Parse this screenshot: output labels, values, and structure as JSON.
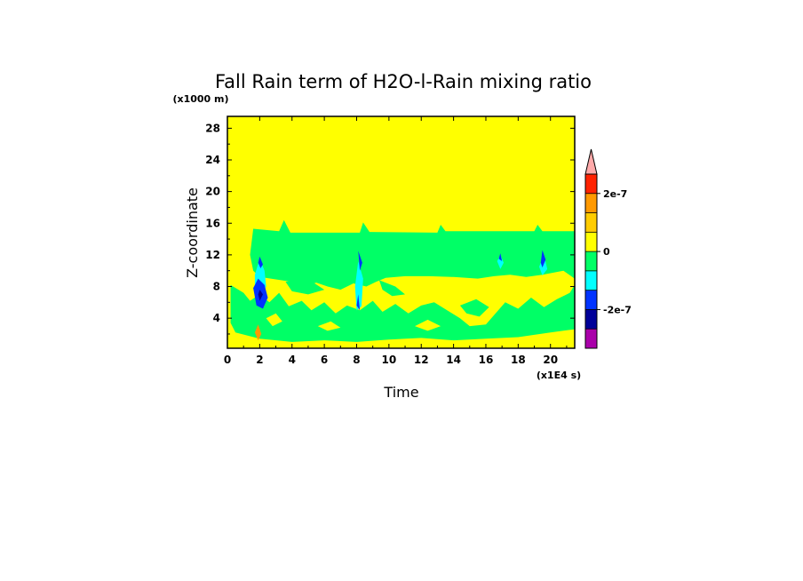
{
  "chart_data": {
    "type": "heatmap",
    "title": "Fall Rain term of H2O-l-Rain mixing ratio",
    "xlabel": "Time",
    "ylabel": "Z-coordinate",
    "x_unit": "(x1E4 s)",
    "y_unit": "(x1000 m)",
    "xlim": [
      0,
      21.5
    ],
    "ylim": [
      0.2,
      29.5
    ],
    "x_ticks": [
      0,
      2,
      4,
      6,
      8,
      10,
      12,
      14,
      16,
      18,
      20
    ],
    "y_ticks": [
      4,
      8,
      12,
      16,
      20,
      24,
      28
    ],
    "background_level_color": "#ffff00",
    "regions": [
      {
        "color": "#00ff66",
        "level": "between -5e-8 and 0",
        "outline": [
          [
            1.6,
            15.3
          ],
          [
            3.2,
            15.0
          ],
          [
            3.5,
            16.4
          ],
          [
            3.9,
            14.8
          ],
          [
            8.2,
            14.8
          ],
          [
            8.4,
            16.1
          ],
          [
            8.8,
            14.9
          ],
          [
            13.0,
            14.8
          ],
          [
            13.2,
            15.8
          ],
          [
            13.5,
            15.0
          ],
          [
            19.0,
            15.0
          ],
          [
            19.2,
            15.8
          ],
          [
            19.5,
            15.0
          ],
          [
            21.5,
            15.0
          ],
          [
            21.5,
            9.0
          ],
          [
            20.8,
            10.0
          ],
          [
            19.5,
            9.5
          ],
          [
            18.5,
            9.2
          ],
          [
            17.5,
            9.5
          ],
          [
            16.5,
            9.3
          ],
          [
            15.5,
            9.0
          ],
          [
            14.0,
            9.2
          ],
          [
            12.5,
            9.3
          ],
          [
            11.0,
            9.3
          ],
          [
            9.8,
            9.1
          ],
          [
            9.2,
            8.6
          ],
          [
            8.6,
            8.0
          ],
          [
            7.8,
            8.4
          ],
          [
            7.0,
            7.6
          ],
          [
            6.2,
            8.0
          ],
          [
            5.5,
            8.5
          ],
          [
            4.8,
            8.0
          ],
          [
            4.0,
            8.6
          ],
          [
            3.0,
            8.9
          ],
          [
            2.0,
            9.2
          ],
          [
            1.6,
            10.0
          ],
          [
            1.4,
            12.0
          ]
        ]
      },
      {
        "color": "#00ff66",
        "level": "between -5e-8 and 0",
        "outline": [
          [
            0.2,
            8.2
          ],
          [
            1.0,
            7.2
          ],
          [
            1.4,
            6.2
          ],
          [
            2.0,
            7.0
          ],
          [
            2.6,
            6.0
          ],
          [
            3.2,
            7.2
          ],
          [
            3.8,
            5.5
          ],
          [
            4.6,
            6.2
          ],
          [
            5.2,
            5.0
          ],
          [
            6.0,
            6.0
          ],
          [
            6.7,
            4.6
          ],
          [
            7.4,
            5.6
          ],
          [
            8.2,
            5.0
          ],
          [
            9.0,
            6.2
          ],
          [
            9.6,
            4.8
          ],
          [
            10.4,
            5.8
          ],
          [
            11.2,
            4.6
          ],
          [
            12.0,
            5.6
          ],
          [
            12.8,
            6.0
          ],
          [
            13.6,
            5.0
          ],
          [
            14.4,
            4.0
          ],
          [
            15.0,
            3.0
          ],
          [
            16.0,
            3.2
          ],
          [
            16.6,
            4.6
          ],
          [
            17.2,
            6.0
          ],
          [
            18.0,
            5.2
          ],
          [
            18.8,
            6.6
          ],
          [
            19.6,
            5.4
          ],
          [
            20.4,
            6.4
          ],
          [
            21.2,
            7.2
          ],
          [
            21.5,
            8.2
          ],
          [
            21.5,
            2.6
          ],
          [
            20.0,
            2.2
          ],
          [
            18.0,
            1.6
          ],
          [
            16.0,
            1.4
          ],
          [
            14.0,
            1.2
          ],
          [
            12.0,
            1.5
          ],
          [
            10.0,
            1.3
          ],
          [
            8.0,
            1.0
          ],
          [
            6.0,
            1.2
          ],
          [
            4.0,
            1.0
          ],
          [
            2.0,
            1.4
          ],
          [
            0.5,
            2.2
          ],
          [
            0.2,
            3.4
          ]
        ]
      },
      {
        "color": "#00ff66",
        "level": "between -5e-8 and 0",
        "outline": [
          [
            3.6,
            8.6
          ],
          [
            4.6,
            9.0
          ],
          [
            5.4,
            8.4
          ],
          [
            6.0,
            7.6
          ],
          [
            5.0,
            7.0
          ],
          [
            4.0,
            7.4
          ]
        ]
      },
      {
        "color": "#00ff66",
        "level": "between -5e-8 and 0",
        "outline": [
          [
            9.4,
            8.8
          ],
          [
            10.4,
            8.0
          ],
          [
            11.0,
            7.0
          ],
          [
            10.2,
            6.8
          ],
          [
            9.6,
            7.6
          ]
        ]
      },
      {
        "color": "#00ff66",
        "level": "between -5e-8 and 0",
        "outline": [
          [
            14.4,
            5.6
          ],
          [
            15.4,
            6.4
          ],
          [
            16.2,
            5.4
          ],
          [
            15.6,
            4.2
          ],
          [
            14.8,
            4.6
          ]
        ]
      },
      {
        "color": "#ffff00",
        "level": "between 0 and 5e-8",
        "outline": [
          [
            2.4,
            4.0
          ],
          [
            3.0,
            4.6
          ],
          [
            3.4,
            3.6
          ],
          [
            2.8,
            3.0
          ]
        ]
      },
      {
        "color": "#ffff00",
        "level": "between 0 and 5e-8",
        "outline": [
          [
            5.6,
            3.0
          ],
          [
            6.4,
            3.6
          ],
          [
            7.0,
            2.8
          ],
          [
            6.2,
            2.4
          ]
        ]
      },
      {
        "color": "#ffff00",
        "level": "between 0 and 5e-8",
        "outline": [
          [
            11.6,
            3.0
          ],
          [
            12.4,
            3.8
          ],
          [
            13.2,
            3.0
          ],
          [
            12.4,
            2.4
          ]
        ]
      },
      {
        "color": "#00ffff",
        "level": "between -1e-7 and -5e-8",
        "outline": [
          [
            1.7,
            9.5
          ],
          [
            2.0,
            11.5
          ],
          [
            2.3,
            10.0
          ],
          [
            2.4,
            8.0
          ],
          [
            2.0,
            6.8
          ],
          [
            1.7,
            8.0
          ]
        ]
      },
      {
        "color": "#00ffff",
        "level": "between -1e-7 and -5e-8",
        "outline": [
          [
            7.9,
            8.0
          ],
          [
            8.1,
            11.2
          ],
          [
            8.4,
            9.0
          ],
          [
            8.3,
            5.5
          ],
          [
            8.0,
            5.0
          ]
        ]
      },
      {
        "color": "#00ffff",
        "level": "between -1e-7 and -5e-8",
        "outline": [
          [
            19.3,
            10.5
          ],
          [
            19.6,
            12.0
          ],
          [
            19.8,
            10.2
          ],
          [
            19.5,
            9.4
          ]
        ]
      },
      {
        "color": "#00ffff",
        "level": "between -1e-7 and -5e-8",
        "outline": [
          [
            16.7,
            11.2
          ],
          [
            16.9,
            12.0
          ],
          [
            17.1,
            11.0
          ],
          [
            16.9,
            10.2
          ]
        ]
      },
      {
        "color": "#0033ff",
        "level": "between -2e-7 and -1e-7",
        "outline": [
          [
            1.6,
            7.8
          ],
          [
            1.9,
            9.0
          ],
          [
            2.3,
            8.2
          ],
          [
            2.5,
            6.6
          ],
          [
            2.2,
            5.2
          ],
          [
            1.8,
            5.6
          ]
        ]
      },
      {
        "color": "#0033ff",
        "level": "between -2e-7 and -1e-7",
        "outline": [
          [
            1.9,
            11.0
          ],
          [
            2.0,
            11.8
          ],
          [
            2.2,
            10.8
          ],
          [
            2.05,
            10.3
          ]
        ]
      },
      {
        "color": "#0033ff",
        "level": "between -2e-7 and -1e-7",
        "outline": [
          [
            8.1,
            12.5
          ],
          [
            8.2,
            10.0
          ],
          [
            8.35,
            11.0
          ]
        ]
      },
      {
        "color": "#0033ff",
        "level": "between -2e-7 and -1e-7",
        "outline": [
          [
            8.0,
            5.6
          ],
          [
            8.1,
            7.0
          ],
          [
            8.2,
            5.0
          ]
        ]
      },
      {
        "color": "#0033ff",
        "level": "between -2e-7 and -1e-7",
        "outline": [
          [
            19.4,
            11.0
          ],
          [
            19.5,
            12.6
          ],
          [
            19.7,
            11.4
          ],
          [
            19.5,
            10.4
          ]
        ]
      },
      {
        "color": "#0033ff",
        "level": "between -2e-7 and -1e-7",
        "outline": [
          [
            16.8,
            11.5
          ],
          [
            16.9,
            12.2
          ],
          [
            17.0,
            11.2
          ]
        ]
      },
      {
        "color": "#000099",
        "level": "between -3e-7 and -2e-7",
        "outline": [
          [
            1.9,
            7.0
          ],
          [
            2.0,
            7.6
          ],
          [
            2.2,
            7.0
          ],
          [
            2.0,
            6.2
          ]
        ]
      },
      {
        "color": "#ff9900",
        "level": "between 5e-8 and 1e-7",
        "outline": [
          [
            1.7,
            2.2
          ],
          [
            1.9,
            3.2
          ],
          [
            2.1,
            2.0
          ],
          [
            1.9,
            1.2
          ]
        ]
      }
    ],
    "colorbar": {
      "levels_top_to_bottom": [
        "#ff2200",
        "#ff9900",
        "#ffcc00",
        "#ffff00",
        "#00ff66",
        "#00ffff",
        "#0033ff",
        "#000099",
        "#aa00aa"
      ],
      "extend_top_color": "#ffaaaa",
      "tick_labels": [
        "2e-7",
        "0",
        "-2e-7"
      ],
      "tick_level_boundaries": [
        1,
        4,
        7
      ]
    }
  }
}
